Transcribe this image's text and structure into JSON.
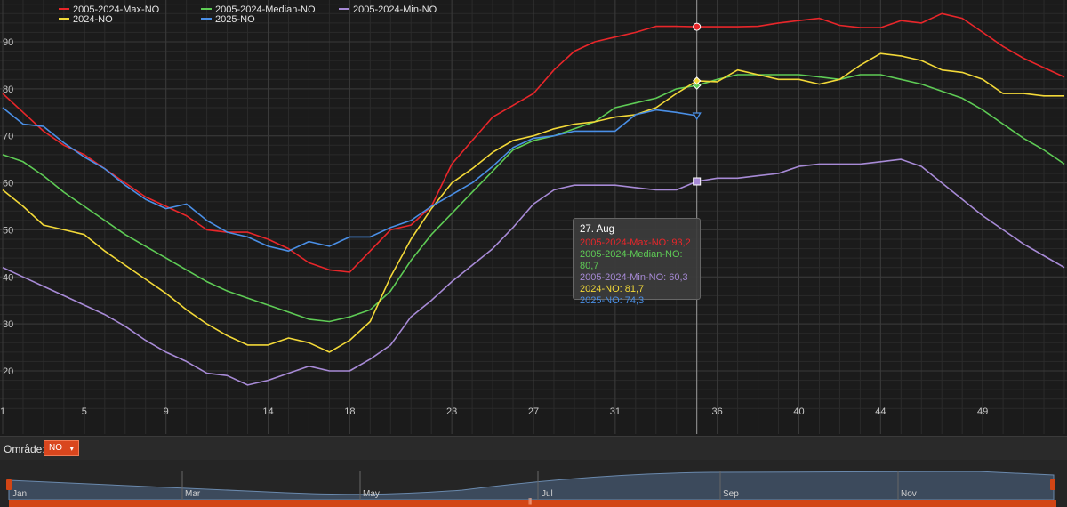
{
  "legend": [
    {
      "name": "2005-2024-Max-NO",
      "color": "#e8262a"
    },
    {
      "name": "2005-2024-Median-NO",
      "color": "#5ecb55"
    },
    {
      "name": "2005-2024-Min-NO",
      "color": "#a78ad6"
    },
    {
      "name": "2024-NO",
      "color": "#f2d838"
    },
    {
      "name": "2025-NO",
      "color": "#4a8fe6"
    }
  ],
  "tooltip": {
    "title": "27. Aug",
    "lines": [
      {
        "text": "2005-2024-Max-NO: 93,2",
        "color": "#e8262a"
      },
      {
        "text": "2005-2024-Median-NO: 80,7",
        "color": "#5ecb55"
      },
      {
        "text": "2005-2024-Min-NO: 60,3",
        "color": "#a78ad6"
      },
      {
        "text": "2024-NO: 81,7",
        "color": "#f2d838"
      },
      {
        "text": "2025-NO: 74,3",
        "color": "#4a8fe6"
      }
    ]
  },
  "toolbar": {
    "area_label": "Område:",
    "area_value": "NO",
    "caret": "▾"
  },
  "navigator": {
    "months": [
      "Jan",
      "Mar",
      "May",
      "Jul",
      "Sep",
      "Nov"
    ],
    "scroll_grip": "|||"
  },
  "chart_data": {
    "type": "line",
    "xlim": [
      1,
      53
    ],
    "ylim": [
      12,
      100
    ],
    "x_ticks": [
      1,
      5,
      9,
      14,
      18,
      23,
      27,
      31,
      36,
      40,
      44,
      49
    ],
    "y_ticks": [
      20,
      30,
      40,
      50,
      60,
      70,
      80,
      90
    ],
    "grid": true,
    "legend_position": "top-left",
    "crosshair_x": 35,
    "series": [
      {
        "name": "2005-2024-Max-NO",
        "color": "#e8262a",
        "x": [
          1,
          2,
          3,
          4,
          5,
          6,
          7,
          8,
          9,
          10,
          11,
          12,
          13,
          14,
          15,
          16,
          17,
          18,
          19,
          20,
          21,
          22,
          23,
          24,
          25,
          26,
          27,
          28,
          29,
          30,
          31,
          32,
          33,
          34,
          35,
          36,
          37,
          38,
          39,
          40,
          41,
          42,
          43,
          44,
          45,
          46,
          47,
          48,
          49,
          50,
          51,
          52,
          53
        ],
        "values": [
          79,
          75,
          71,
          68,
          66,
          63,
          60,
          57,
          55,
          53,
          50,
          49.5,
          49.5,
          48,
          46,
          43,
          41.5,
          41,
          45.5,
          50,
          51,
          55,
          64,
          69,
          74,
          76.5,
          79,
          84,
          88,
          90,
          91,
          92,
          93.3,
          93.3,
          93.2,
          93.2,
          93.2,
          93.3,
          94,
          94.5,
          95,
          93.5,
          93,
          93,
          94.5,
          94,
          96,
          95,
          92,
          89,
          86.5,
          84.5,
          82.5
        ]
      },
      {
        "name": "2005-2024-Median-NO",
        "color": "#5ecb55",
        "x": [
          1,
          2,
          3,
          4,
          5,
          6,
          7,
          8,
          9,
          10,
          11,
          12,
          13,
          14,
          15,
          16,
          17,
          18,
          19,
          20,
          21,
          22,
          23,
          24,
          25,
          26,
          27,
          28,
          29,
          30,
          31,
          32,
          33,
          34,
          35,
          36,
          37,
          38,
          39,
          40,
          41,
          42,
          43,
          44,
          45,
          46,
          47,
          48,
          49,
          50,
          51,
          52,
          53
        ],
        "values": [
          66,
          64.5,
          61.5,
          58,
          55,
          52,
          49,
          46.5,
          44,
          41.5,
          39,
          37,
          35.5,
          34,
          32.5,
          31,
          30.5,
          31.5,
          33,
          37,
          43.5,
          49,
          53.5,
          58,
          62.5,
          67,
          69,
          70,
          71.5,
          73,
          76,
          77,
          78,
          80,
          80.7,
          82,
          83,
          83,
          83,
          83,
          82.5,
          82,
          83,
          83,
          82,
          81,
          79.5,
          78,
          75.5,
          72.5,
          69.5,
          67,
          64
        ]
      },
      {
        "name": "2005-2024-Min-NO",
        "color": "#a78ad6",
        "x": [
          1,
          2,
          3,
          4,
          5,
          6,
          7,
          8,
          9,
          10,
          11,
          12,
          13,
          14,
          15,
          16,
          17,
          18,
          19,
          20,
          21,
          22,
          23,
          24,
          25,
          26,
          27,
          28,
          29,
          30,
          31,
          32,
          33,
          34,
          35,
          36,
          37,
          38,
          39,
          40,
          41,
          42,
          43,
          44,
          45,
          46,
          47,
          48,
          49,
          50,
          51,
          52,
          53
        ],
        "values": [
          42,
          40,
          38,
          36,
          34,
          32,
          29.5,
          26.5,
          24,
          22,
          19.5,
          19,
          17,
          18,
          19.5,
          21,
          20,
          20,
          22.5,
          25.5,
          31.5,
          35,
          39,
          42.5,
          46,
          50.5,
          55.5,
          58.5,
          59.5,
          59.5,
          59.5,
          59,
          58.5,
          58.5,
          60.3,
          61,
          61,
          61.5,
          62,
          63.5,
          64,
          64,
          64,
          64.5,
          65,
          63.5,
          60,
          56.5,
          53,
          50,
          47,
          44.5,
          42
        ]
      },
      {
        "name": "2024-NO",
        "color": "#f2d838",
        "x": [
          1,
          2,
          3,
          4,
          5,
          6,
          7,
          8,
          9,
          10,
          11,
          12,
          13,
          14,
          15,
          16,
          17,
          18,
          19,
          20,
          21,
          22,
          23,
          24,
          25,
          26,
          27,
          28,
          29,
          30,
          31,
          32,
          33,
          34,
          35,
          36,
          37,
          38,
          39,
          40,
          41,
          42,
          43,
          44,
          45,
          46,
          47,
          48,
          49,
          50,
          51,
          52,
          53
        ],
        "values": [
          58.5,
          55,
          51,
          50,
          49,
          45.5,
          42.5,
          39.5,
          36.5,
          33,
          30,
          27.5,
          25.5,
          25.5,
          27,
          26,
          24,
          26.5,
          30.5,
          40,
          48,
          54.5,
          60,
          63,
          66.5,
          69,
          70,
          71.5,
          72.5,
          73,
          74,
          74.5,
          76,
          79,
          81.7,
          81.5,
          84,
          83,
          82,
          82,
          81,
          82,
          85,
          87.5,
          87,
          86,
          84,
          83.5,
          82,
          79,
          79,
          78.5,
          78.5
        ]
      },
      {
        "name": "2025-NO",
        "color": "#4a8fe6",
        "x": [
          1,
          2,
          3,
          4,
          5,
          6,
          7,
          8,
          9,
          10,
          11,
          12,
          13,
          14,
          15,
          16,
          17,
          18,
          19,
          20,
          21,
          22,
          23,
          24,
          25,
          26,
          27,
          28,
          29,
          30,
          31,
          32,
          33,
          34,
          35
        ],
        "values": [
          76,
          72.5,
          72,
          68.5,
          65.5,
          63,
          59.5,
          56.5,
          54.5,
          55.5,
          52,
          49.5,
          48.5,
          46.5,
          45.5,
          47.5,
          46.5,
          48.5,
          48.5,
          50.5,
          52,
          55,
          57.5,
          60,
          63.5,
          67.5,
          69.5,
          70,
          71,
          71,
          71,
          74.5,
          75.5,
          75,
          74.3
        ]
      }
    ]
  }
}
